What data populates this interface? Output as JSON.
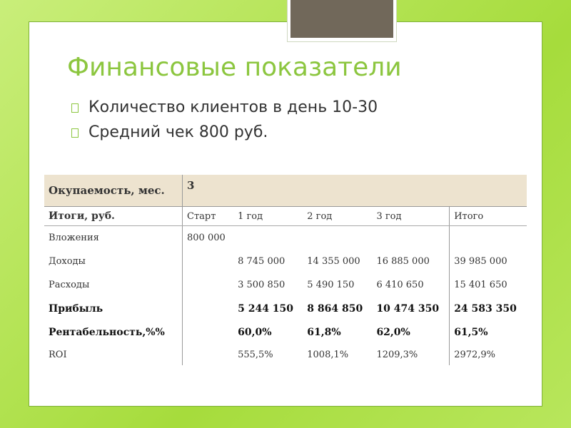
{
  "title": "Финансовые показатели",
  "bullets": [
    "Количество клиентов в день 10-30",
    "Средний чек 800 руб."
  ],
  "table": {
    "payback_label": "Окупаемость, мес.",
    "payback_value": "3",
    "header": [
      "Итоги, руб.",
      "Старт",
      "1 год",
      "2 год",
      "3 год",
      "Итого"
    ],
    "rows": [
      [
        "Вложения",
        "800 000",
        "",
        "",
        "",
        ""
      ],
      [
        "Доходы",
        "",
        "8 745 000",
        "14 355 000",
        "16 885 000",
        "39 985 000"
      ],
      [
        "Расходы",
        "",
        "3 500 850",
        "5 490 150",
        "6 410 650",
        "15 401 650"
      ],
      [
        "Прибыль",
        "",
        "5 244 150",
        "8 864 850",
        "10 474 350",
        "24 583 350"
      ],
      [
        "Рентабельность,%%",
        "",
        "60,0%",
        "61,8%",
        "62,0%",
        "61,5%"
      ],
      [
        "ROI",
        "",
        "555,5%",
        "1008,1%",
        "1209,3%",
        "2972,9%"
      ]
    ],
    "bold_rows": [
      3,
      4
    ]
  },
  "colors": {
    "accent": "#8cc63f",
    "header_bg": "#ede3cf",
    "box": "#71685a"
  }
}
